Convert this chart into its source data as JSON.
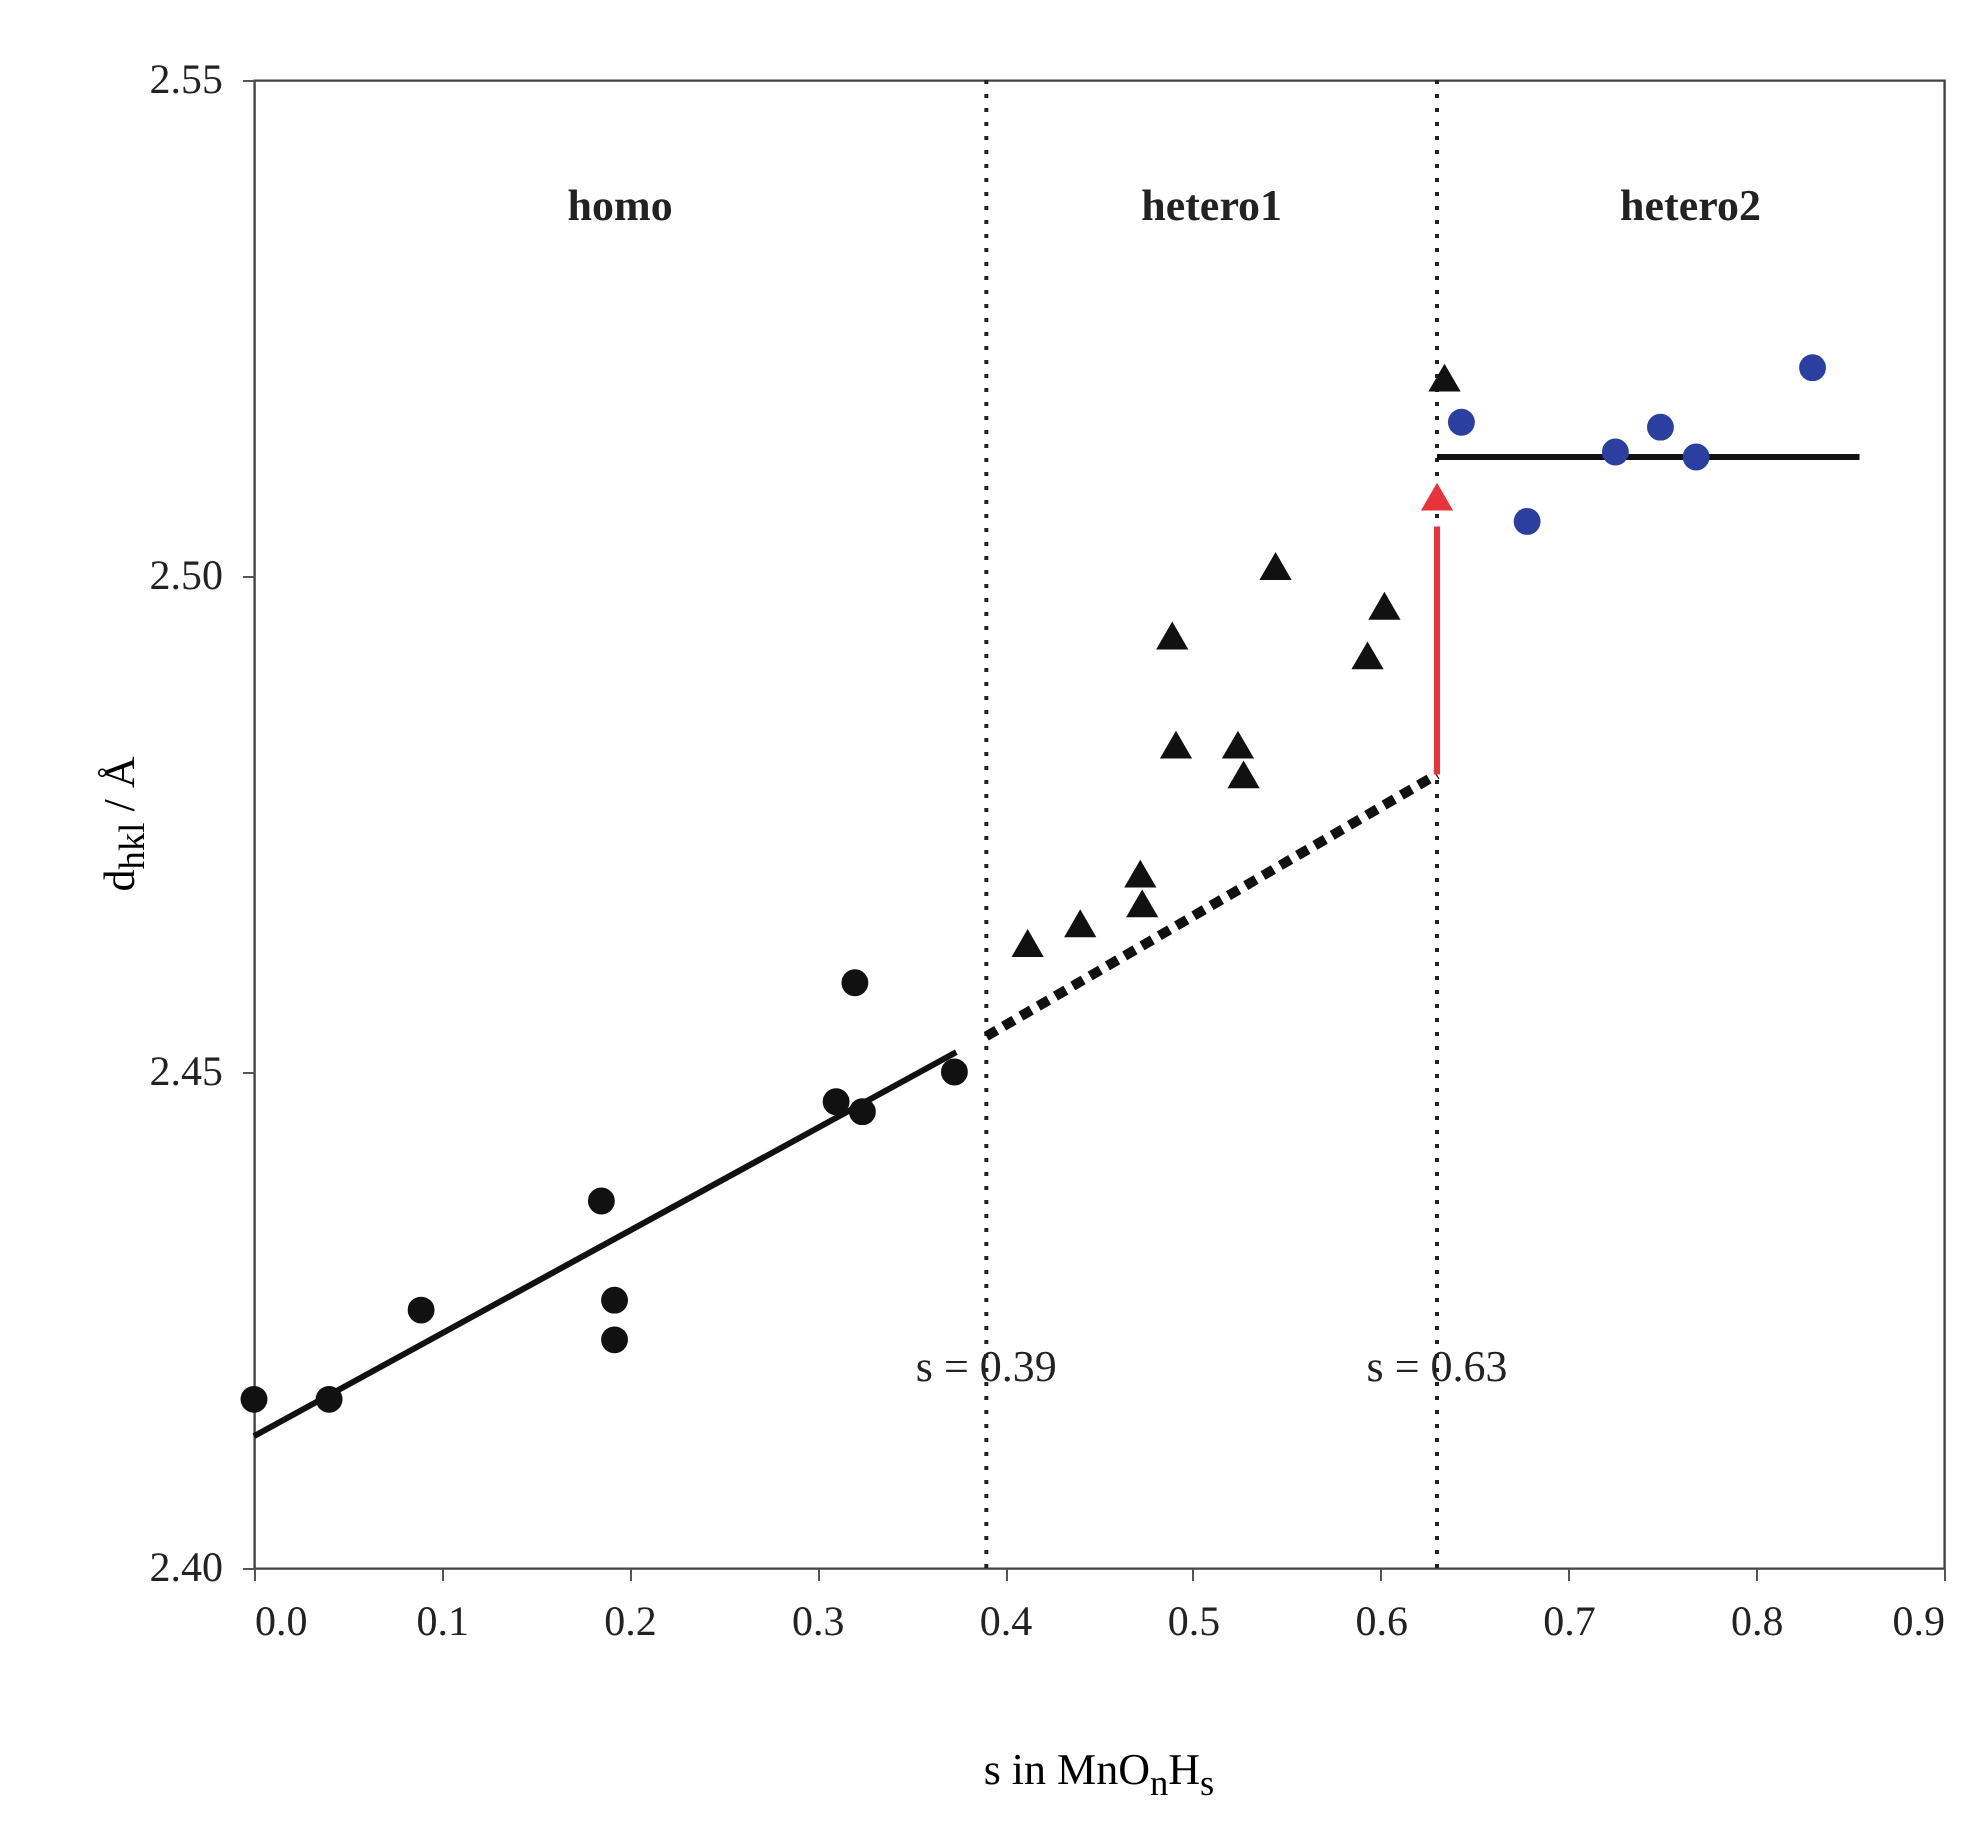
{
  "chart_data": {
    "type": "scatter",
    "xlabel": "s in MnO$_{n}$H$_{s}$",
    "ylabel": "d$_{hkl}$ / Å",
    "xlim": [
      0,
      0.9
    ],
    "ylim": [
      2.4,
      2.55
    ],
    "xticks": [
      {
        "value": 0,
        "label": "0.0"
      },
      0.1,
      0.2,
      0.3,
      0.4,
      0.5,
      0.6,
      0.7,
      0.8,
      0.9
    ],
    "yticks": [
      {
        "value": 2.4,
        "label": "2.40"
      },
      2.45,
      {
        "value": 2.5,
        "label": "2.50"
      },
      2.55
    ],
    "grid": false,
    "series": [
      {
        "marker": "circle",
        "color": "#111111",
        "x": [
          0.0,
          0.04,
          0.089,
          0.185,
          0.192,
          0.192,
          0.31,
          0.32,
          0.324,
          0.373
        ],
        "values": [
          2.417,
          2.417,
          2.426,
          2.437,
          2.427,
          2.423,
          2.447,
          2.459,
          2.446,
          2.45
        ]
      },
      {
        "marker": "triangle",
        "color": "#111111",
        "x": [
          0.412,
          0.44,
          0.472,
          0.473,
          0.489,
          0.491,
          0.524,
          0.527,
          0.544,
          0.593,
          0.602,
          0.634
        ],
        "values": [
          2.463,
          2.465,
          2.47,
          2.467,
          2.494,
          2.483,
          2.483,
          2.48,
          2.501,
          2.492,
          2.497,
          2.52
        ]
      },
      {
        "marker": "circle",
        "color": "#2b3fa0",
        "x": [
          0.643,
          0.678,
          0.725,
          0.749,
          0.768,
          0.83
        ],
        "values": [
          2.5155,
          2.5055,
          2.5125,
          2.515,
          2.512,
          2.521
        ]
      },
      {
        "type": "line",
        "line_style": "solid",
        "color": "#111111",
        "x": [
          0.0,
          0.374
        ],
        "values": [
          2.4133,
          2.452
        ]
      },
      {
        "type": "line",
        "line_style": "dashed",
        "color": "#111111",
        "x": [
          0.39,
          0.63
        ],
        "values": [
          2.4536,
          2.48
        ]
      },
      {
        "type": "line",
        "line_style": "solid",
        "color": "#111111",
        "x": [
          0.63,
          0.855
        ],
        "values": [
          2.512,
          2.512
        ]
      },
      {
        "type": "line",
        "line_style": "solid",
        "color": "#e8333a",
        "x": [
          0.63,
          0.63
        ],
        "values": [
          2.48,
          2.505
        ]
      },
      {
        "marker": "triangle",
        "color": "#e8333a",
        "x": [
          0.63
        ],
        "values": [
          2.508
        ]
      }
    ],
    "ref_lines": [
      {
        "axis": "x",
        "value": 0.39,
        "label": "s = 0.39",
        "line_style": "dotted"
      },
      {
        "axis": "x",
        "value": 0.63,
        "label": "s = 0.63",
        "line_style": "dotted"
      }
    ],
    "annotations": [
      "homo",
      "hetero1",
      "hetero2"
    ]
  }
}
